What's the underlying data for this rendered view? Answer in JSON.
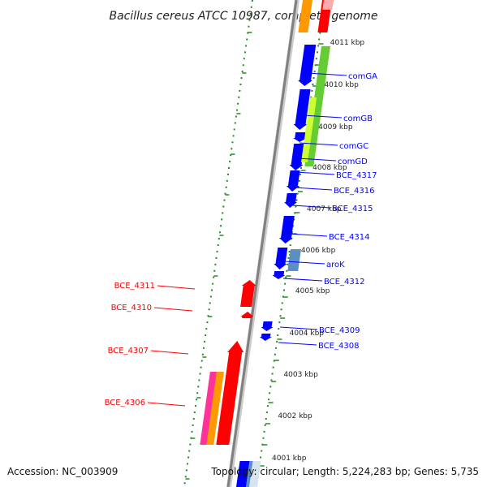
{
  "title": "Bacillus cereus ATCC 10987, complete genome",
  "accession": "Accession: NC_003909",
  "topology": "Topology: circular; Length: 5,224,283 bp; Genes: 5,735",
  "colors": {
    "forward": "#0000ff",
    "reverse": "#ff0000",
    "backbone": "#808080",
    "ticks": "#228b22",
    "green": "#66cc33",
    "lime": "#ccff33",
    "steelblue": "#5b8ec2",
    "orange": "#ff9900",
    "magenta": "#ff3399",
    "pink": "#ffaaaa"
  },
  "kbp_labels": [
    "4011 kbp",
    "4010 kbp",
    "4009 kbp",
    "4008 kbp",
    "4007 kbp",
    "4006 kbp",
    "4005 kbp",
    "4004 kbp",
    "4003 kbp",
    "4002 kbp",
    "4001 kbp"
  ],
  "forward_gene_labels": [
    "comGA",
    "comGB",
    "comGC",
    "comGD",
    "BCE_4317",
    "BCE_4316",
    "BCE_4315",
    "BCE_4314",
    "aroK",
    "BCE_4312",
    "BCE_4309",
    "BCE_4308"
  ],
  "reverse_gene_labels": [
    "BCE_4311",
    "BCE_4310",
    "BCE_4307",
    "BCE_4306"
  ]
}
